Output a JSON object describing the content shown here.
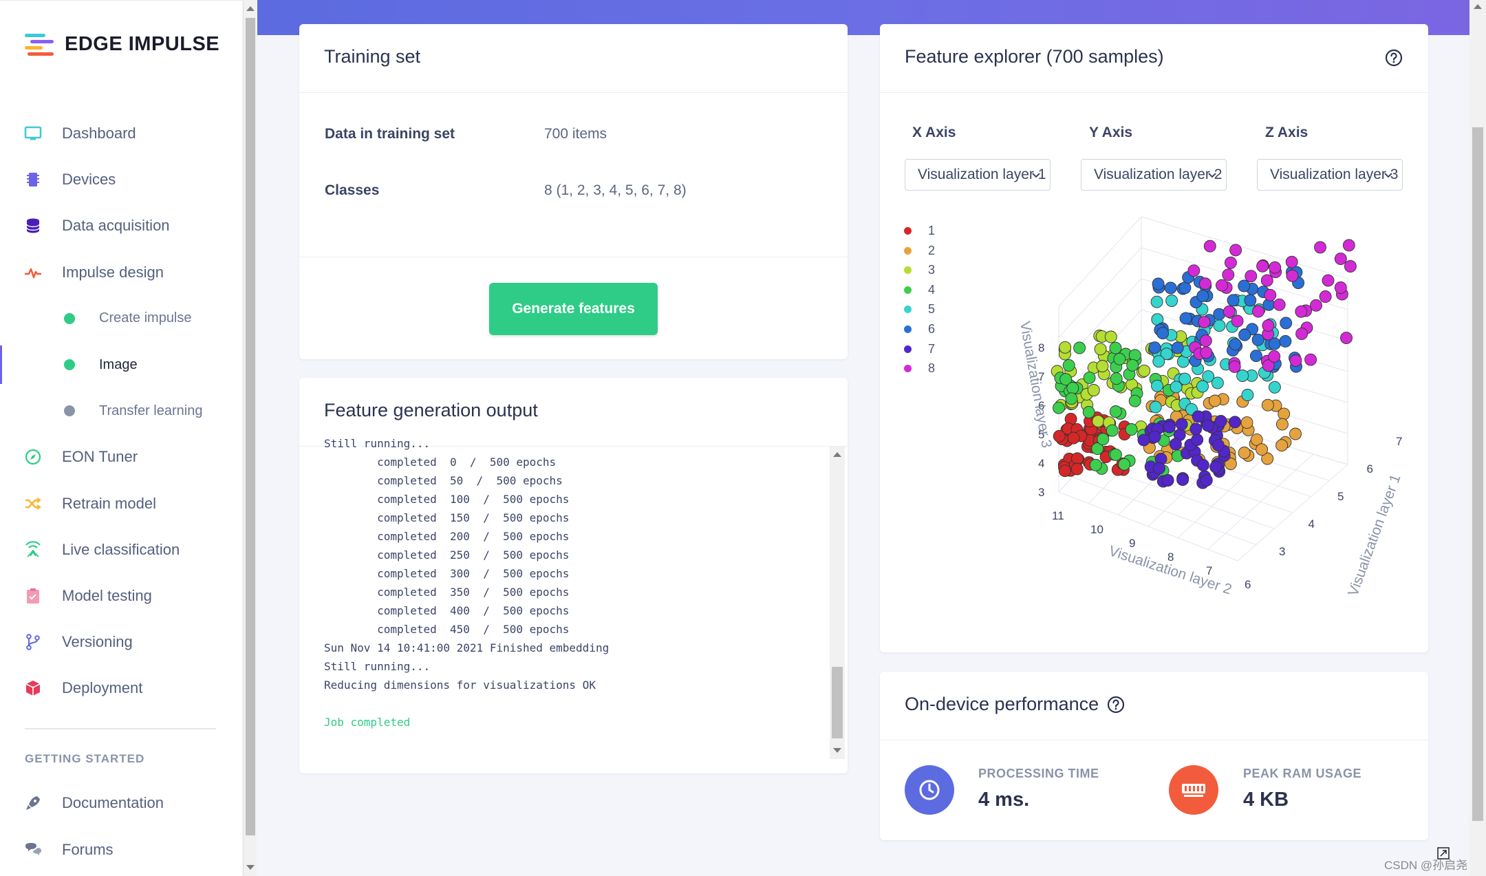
{
  "brand": {
    "name": "EDGE IMPULSE"
  },
  "sidebar": {
    "items": [
      {
        "label": "Dashboard",
        "icon": "monitor-icon"
      },
      {
        "label": "Devices",
        "icon": "chip-icon"
      },
      {
        "label": "Data acquisition",
        "icon": "database-icon"
      },
      {
        "label": "Impulse design",
        "icon": "pulse-icon"
      },
      {
        "label": "Create impulse",
        "icon": "dot-icon"
      },
      {
        "label": "Image",
        "icon": "dot-icon",
        "active": true
      },
      {
        "label": "Transfer learning",
        "icon": "dot-icon"
      },
      {
        "label": "EON Tuner",
        "icon": "compass-icon"
      },
      {
        "label": "Retrain model",
        "icon": "shuffle-icon"
      },
      {
        "label": "Live classification",
        "icon": "broadcast-icon"
      },
      {
        "label": "Model testing",
        "icon": "clipboard-check-icon"
      },
      {
        "label": "Versioning",
        "icon": "branch-icon"
      },
      {
        "label": "Deployment",
        "icon": "box-icon"
      }
    ],
    "section_label": "GETTING STARTED",
    "extra_items": [
      {
        "label": "Documentation",
        "icon": "rocket-icon"
      },
      {
        "label": "Forums",
        "icon": "chat-icon"
      }
    ]
  },
  "training_set": {
    "title": "Training set",
    "rows": [
      {
        "label": "Data in training set",
        "value": "700 items"
      },
      {
        "label": "Classes",
        "value": "8 (1, 2, 3, 4, 5, 6, 7, 8)"
      }
    ],
    "button_label": "Generate features"
  },
  "feature_output": {
    "title": "Feature generation output",
    "lines": [
      "Still running...",
      "        completed  0  /  500 epochs",
      "        completed  50  /  500 epochs",
      "        completed  100  /  500 epochs",
      "        completed  150  /  500 epochs",
      "        completed  200  /  500 epochs",
      "        completed  250  /  500 epochs",
      "        completed  300  /  500 epochs",
      "        completed  350  /  500 epochs",
      "        completed  400  /  500 epochs",
      "        completed  450  /  500 epochs",
      "Sun Nov 14 10:41:00 2021 Finished embedding",
      "Still running...",
      "Reducing dimensions for visualizations OK",
      "",
      "Job completed"
    ]
  },
  "feature_explorer": {
    "title": "Feature explorer (700 samples)",
    "axes": [
      {
        "label": "X Axis",
        "selected": "Visualization layer 1"
      },
      {
        "label": "Y Axis",
        "selected": "Visualization layer 2"
      },
      {
        "label": "Z Axis",
        "selected": "Visualization layer 3"
      }
    ],
    "legend": [
      {
        "label": "1",
        "color": "#d62728"
      },
      {
        "label": "2",
        "color": "#e6a23c"
      },
      {
        "label": "3",
        "color": "#b5dd33"
      },
      {
        "label": "4",
        "color": "#3ccf4e"
      },
      {
        "label": "5",
        "color": "#35d4cd"
      },
      {
        "label": "6",
        "color": "#2a6fd6"
      },
      {
        "label": "7",
        "color": "#5226c9"
      },
      {
        "label": "8",
        "color": "#d42ad6"
      }
    ]
  },
  "chart_data": {
    "type": "scatter",
    "title": "",
    "dimensions": 3,
    "axes": {
      "x": {
        "label": "Visualization layer 1",
        "ticks": [
          3,
          4,
          5,
          6,
          7
        ]
      },
      "y": {
        "label": "Visualization layer 2",
        "ticks": [
          6,
          7,
          8,
          9,
          10,
          11
        ]
      },
      "z": {
        "label": "Visualization layer 3",
        "ticks": [
          3,
          4,
          5,
          6,
          7,
          8
        ]
      }
    },
    "series": [
      {
        "name": "1",
        "color": "#d62728"
      },
      {
        "name": "2",
        "color": "#e6a23c"
      },
      {
        "name": "3",
        "color": "#b5dd33"
      },
      {
        "name": "4",
        "color": "#3ccf4e"
      },
      {
        "name": "5",
        "color": "#35d4cd"
      },
      {
        "name": "6",
        "color": "#2a6fd6"
      },
      {
        "name": "7",
        "color": "#5226c9"
      },
      {
        "name": "8",
        "color": "#d42ad6"
      }
    ],
    "total_samples": 700,
    "grid": true,
    "legend_position": "left"
  },
  "performance": {
    "title": "On-device performance",
    "metrics": [
      {
        "label": "PROCESSING TIME",
        "value": "4 ms.",
        "icon": "clock-icon",
        "color": "#5c6be0"
      },
      {
        "label": "PEAK RAM USAGE",
        "value": "4 KB",
        "icon": "memory-icon",
        "color": "#f25c3c"
      }
    ]
  },
  "watermark": "CSDN @孙启尧"
}
